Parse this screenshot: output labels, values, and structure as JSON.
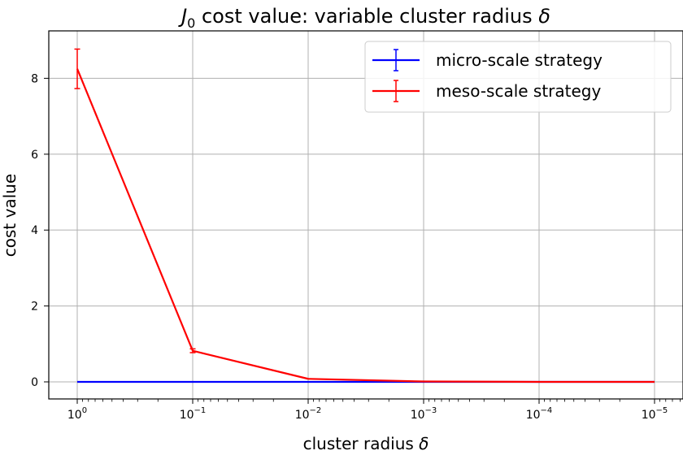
{
  "chart_data": {
    "type": "line",
    "title": {
      "prefix": "J",
      "sub": "0",
      "rest": " cost value: variable cluster radius ",
      "symbol": "δ"
    },
    "xlabel": {
      "text": "cluster radius ",
      "symbol": "δ"
    },
    "ylabel": "cost value",
    "x_scale": "log",
    "x_reversed": true,
    "x": [
      1,
      0.1,
      0.01,
      0.001,
      0.0001,
      1e-05
    ],
    "xticks": [
      {
        "base": "10",
        "exp": "0"
      },
      {
        "base": "10",
        "exp": "−1"
      },
      {
        "base": "10",
        "exp": "−2"
      },
      {
        "base": "10",
        "exp": "−3"
      },
      {
        "base": "10",
        "exp": "−4"
      },
      {
        "base": "10",
        "exp": "−5"
      }
    ],
    "yticks": [
      "0",
      "2",
      "4",
      "6",
      "8"
    ],
    "ylim": [
      -0.45,
      9.25
    ],
    "grid": true,
    "legend_position": "top-right",
    "series": [
      {
        "name": "micro-scale strategy",
        "color": "#0000ff",
        "values": [
          0,
          0,
          0,
          0,
          0,
          0
        ],
        "errors": [
          0,
          0,
          0,
          0,
          0,
          0
        ]
      },
      {
        "name": "meso-scale strategy",
        "color": "#ff0000",
        "values": [
          8.25,
          0.82,
          0.08,
          0.01,
          0.0,
          0.0
        ],
        "errors": [
          0.52,
          0.05,
          0.0,
          0.0,
          0.0,
          0.0
        ]
      }
    ]
  }
}
